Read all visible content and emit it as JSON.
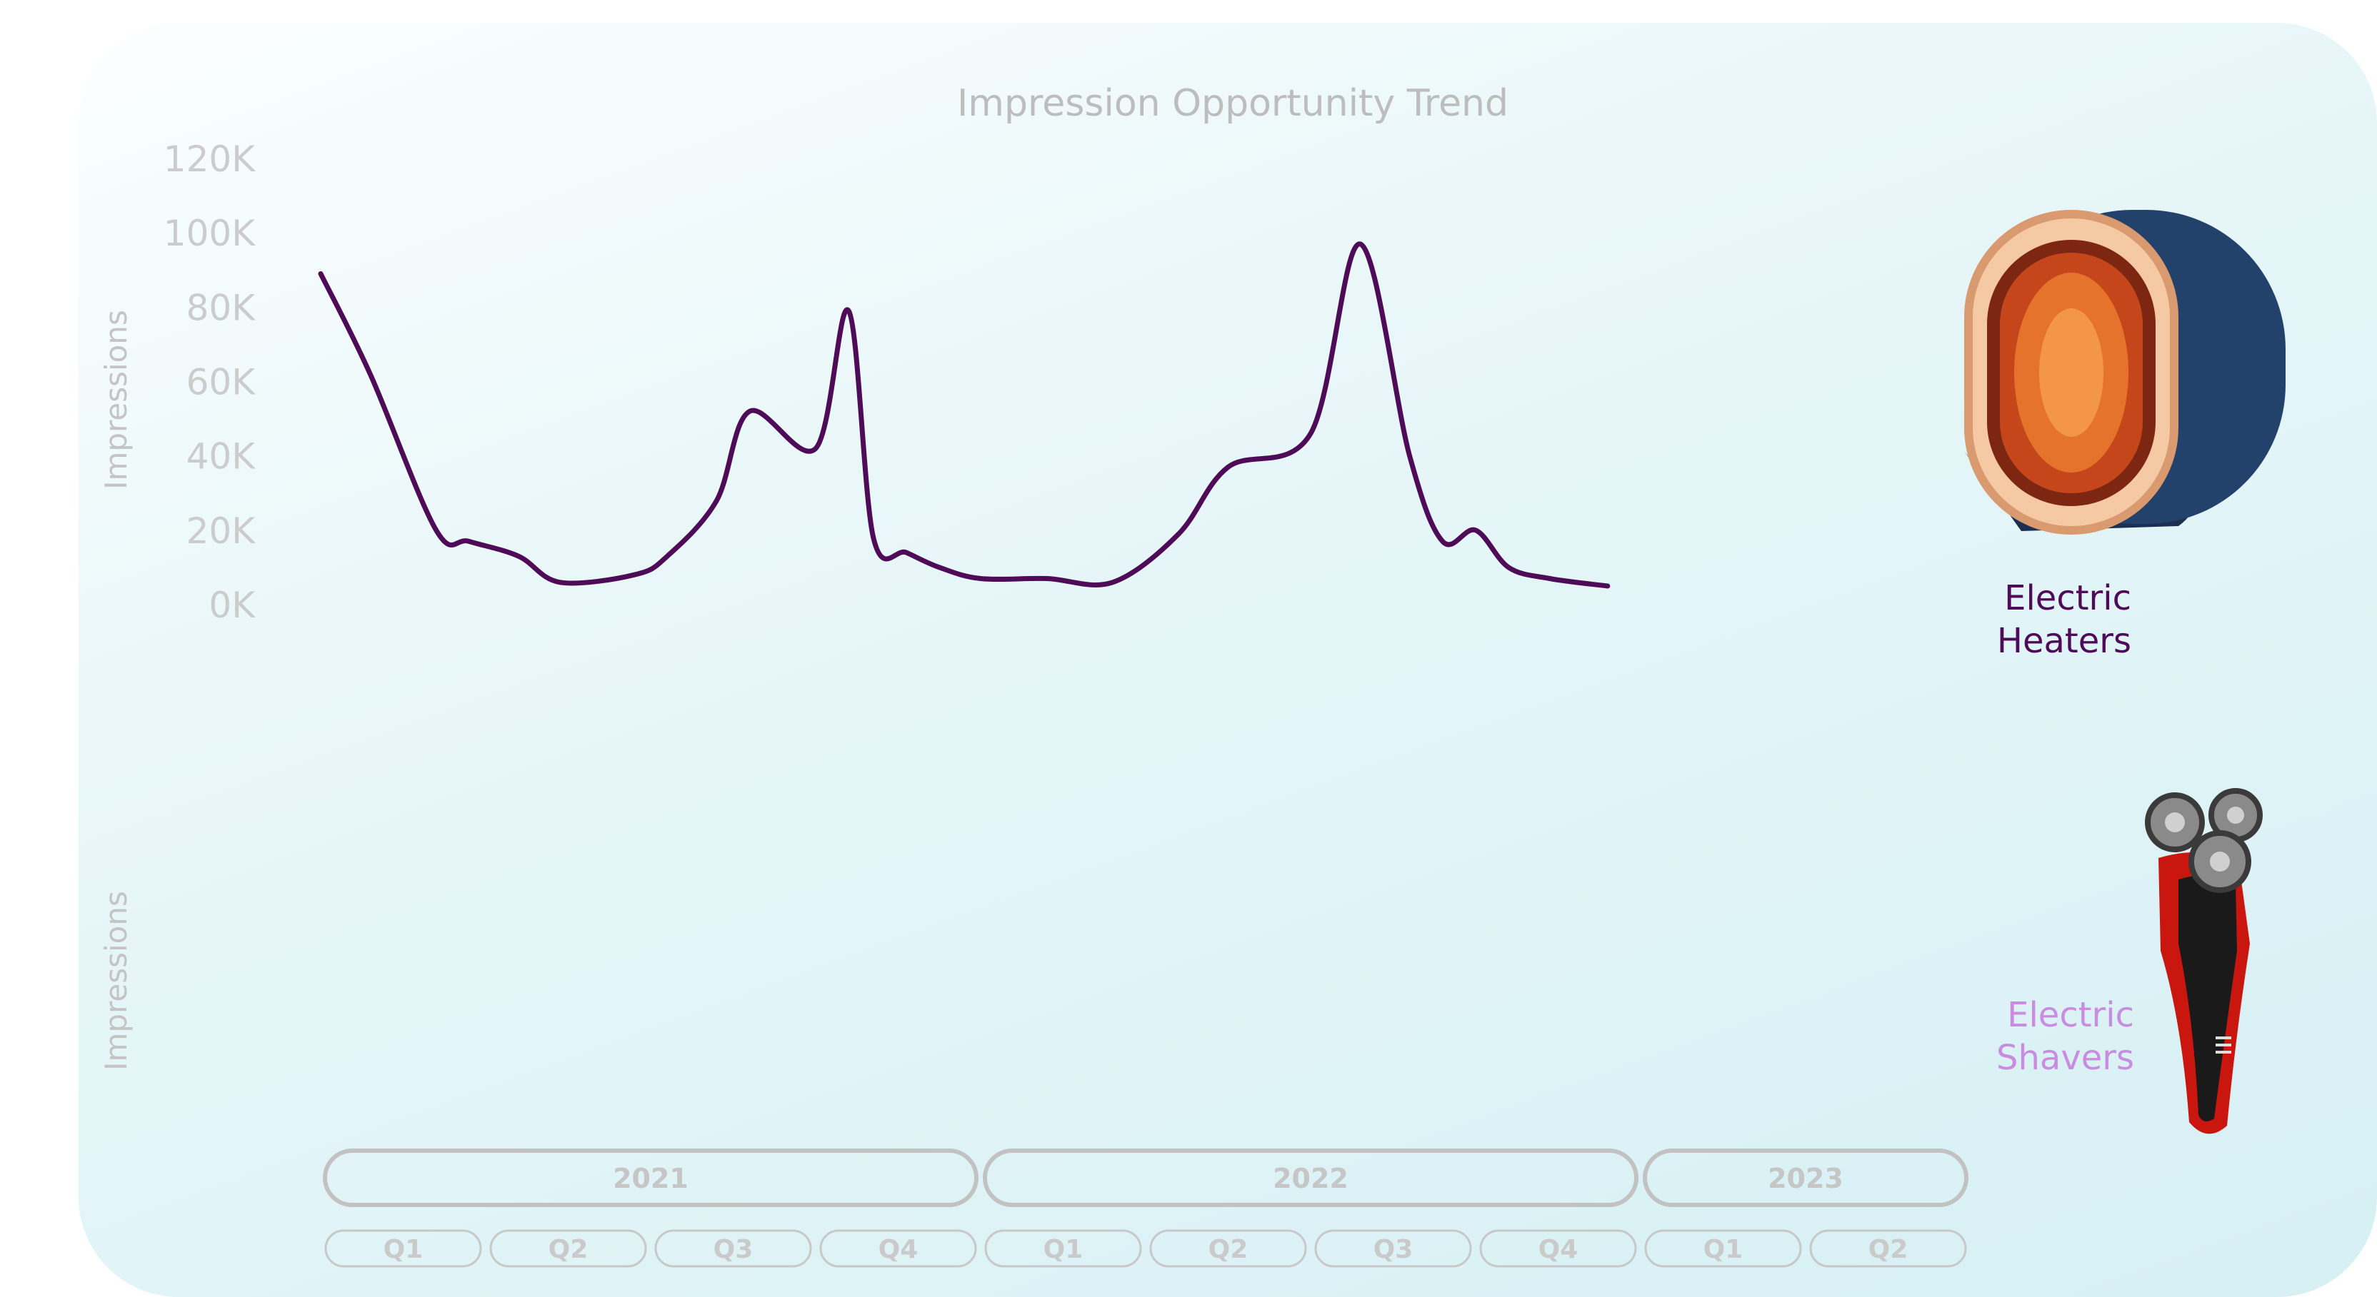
{
  "chart_data": {
    "type": "line",
    "title": "Impression Opportunity Trend",
    "ylabel": "Impressions",
    "ylim": [
      0,
      120000
    ],
    "yticks": [
      "0K",
      "20K",
      "40K",
      "60K",
      "80K",
      "100K",
      "120K"
    ],
    "grid": false,
    "x_axis": {
      "years": [
        {
          "label": "2021",
          "quarters": [
            "Q1",
            "Q2",
            "Q3",
            "Q4"
          ]
        },
        {
          "label": "2022",
          "quarters": [
            "Q1",
            "Q2",
            "Q3",
            "Q4"
          ]
        },
        {
          "label": "2023",
          "quarters": [
            "Q1",
            "Q2"
          ]
        }
      ]
    },
    "x": [
      0,
      0.3,
      0.7,
      0.9,
      1.2,
      1.45,
      1.9,
      2.1,
      2.4,
      2.6,
      3.0,
      3.2,
      3.35,
      3.55,
      3.75,
      4.0,
      4.4,
      4.8,
      5.2,
      5.5,
      6.0,
      6.3,
      6.6,
      6.8,
      7.0,
      7.2,
      7.45,
      7.8,
      8.05,
      8.3,
      8.6,
      9.0
    ],
    "series": [
      {
        "name": "Electric Heaters",
        "color": "#4e0b58",
        "values": [
          89000,
          62000,
          20000,
          17000,
          13000,
          6000,
          8000,
          13000,
          28000,
          52000,
          42000,
          79000,
          18000,
          14000,
          10000,
          7000,
          7000,
          6000,
          19000,
          37000,
          46000,
          97000,
          40000,
          17000,
          20000,
          10000,
          7000,
          5000,
          null,
          null,
          null,
          null
        ]
      }
    ],
    "panels": [
      {
        "series": "Electric Heaters",
        "label_line1": "Electric",
        "label_line2": "Heaters",
        "color": "#4e0b58",
        "icon": "electric-heater-icon"
      },
      {
        "series": "Electric Shavers",
        "label_line1": "Electric",
        "label_line2": "Shavers",
        "color": "#c98ce0",
        "icon": "electric-shaver-icon"
      }
    ]
  },
  "colors": {
    "card_background_top": "#fbfeff",
    "card_background_bottom": "#d6f0f4",
    "axis_text": "#cccccc",
    "pill_outline": "#c2c2c2"
  }
}
